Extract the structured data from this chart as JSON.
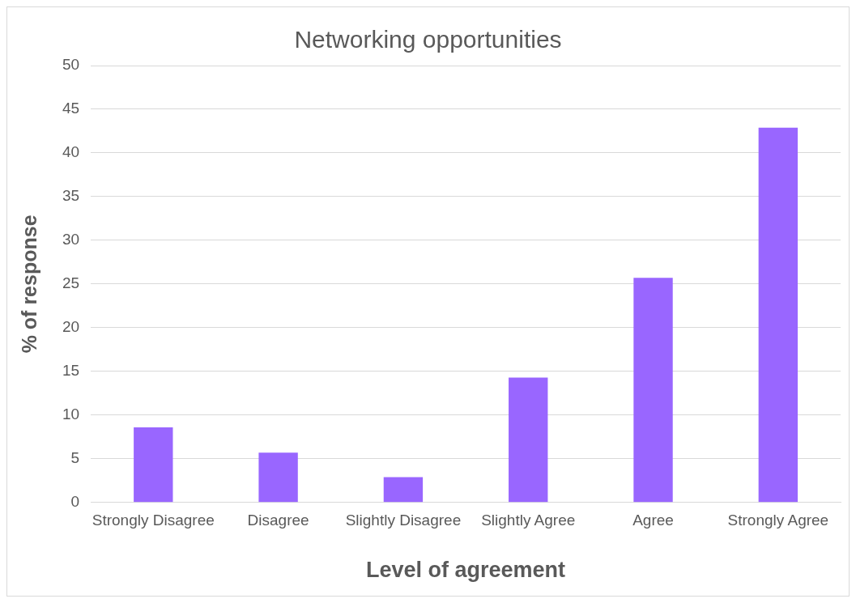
{
  "chart_data": {
    "type": "bar",
    "title": "Networking opportunities",
    "xlabel": "Level of agreement",
    "ylabel": "% of response",
    "categories": [
      "Strongly Disagree",
      "Disagree",
      "Slightly Disagree",
      "Slightly Agree",
      "Agree",
      "Strongly Agree"
    ],
    "values": [
      8.6,
      5.7,
      2.9,
      14.3,
      25.7,
      42.9
    ],
    "color": "#9966ff",
    "ylim": [
      0,
      50
    ],
    "yticks": [
      0,
      5,
      10,
      15,
      20,
      25,
      30,
      35,
      40,
      45,
      50
    ],
    "grid": "y",
    "legend": false
  }
}
